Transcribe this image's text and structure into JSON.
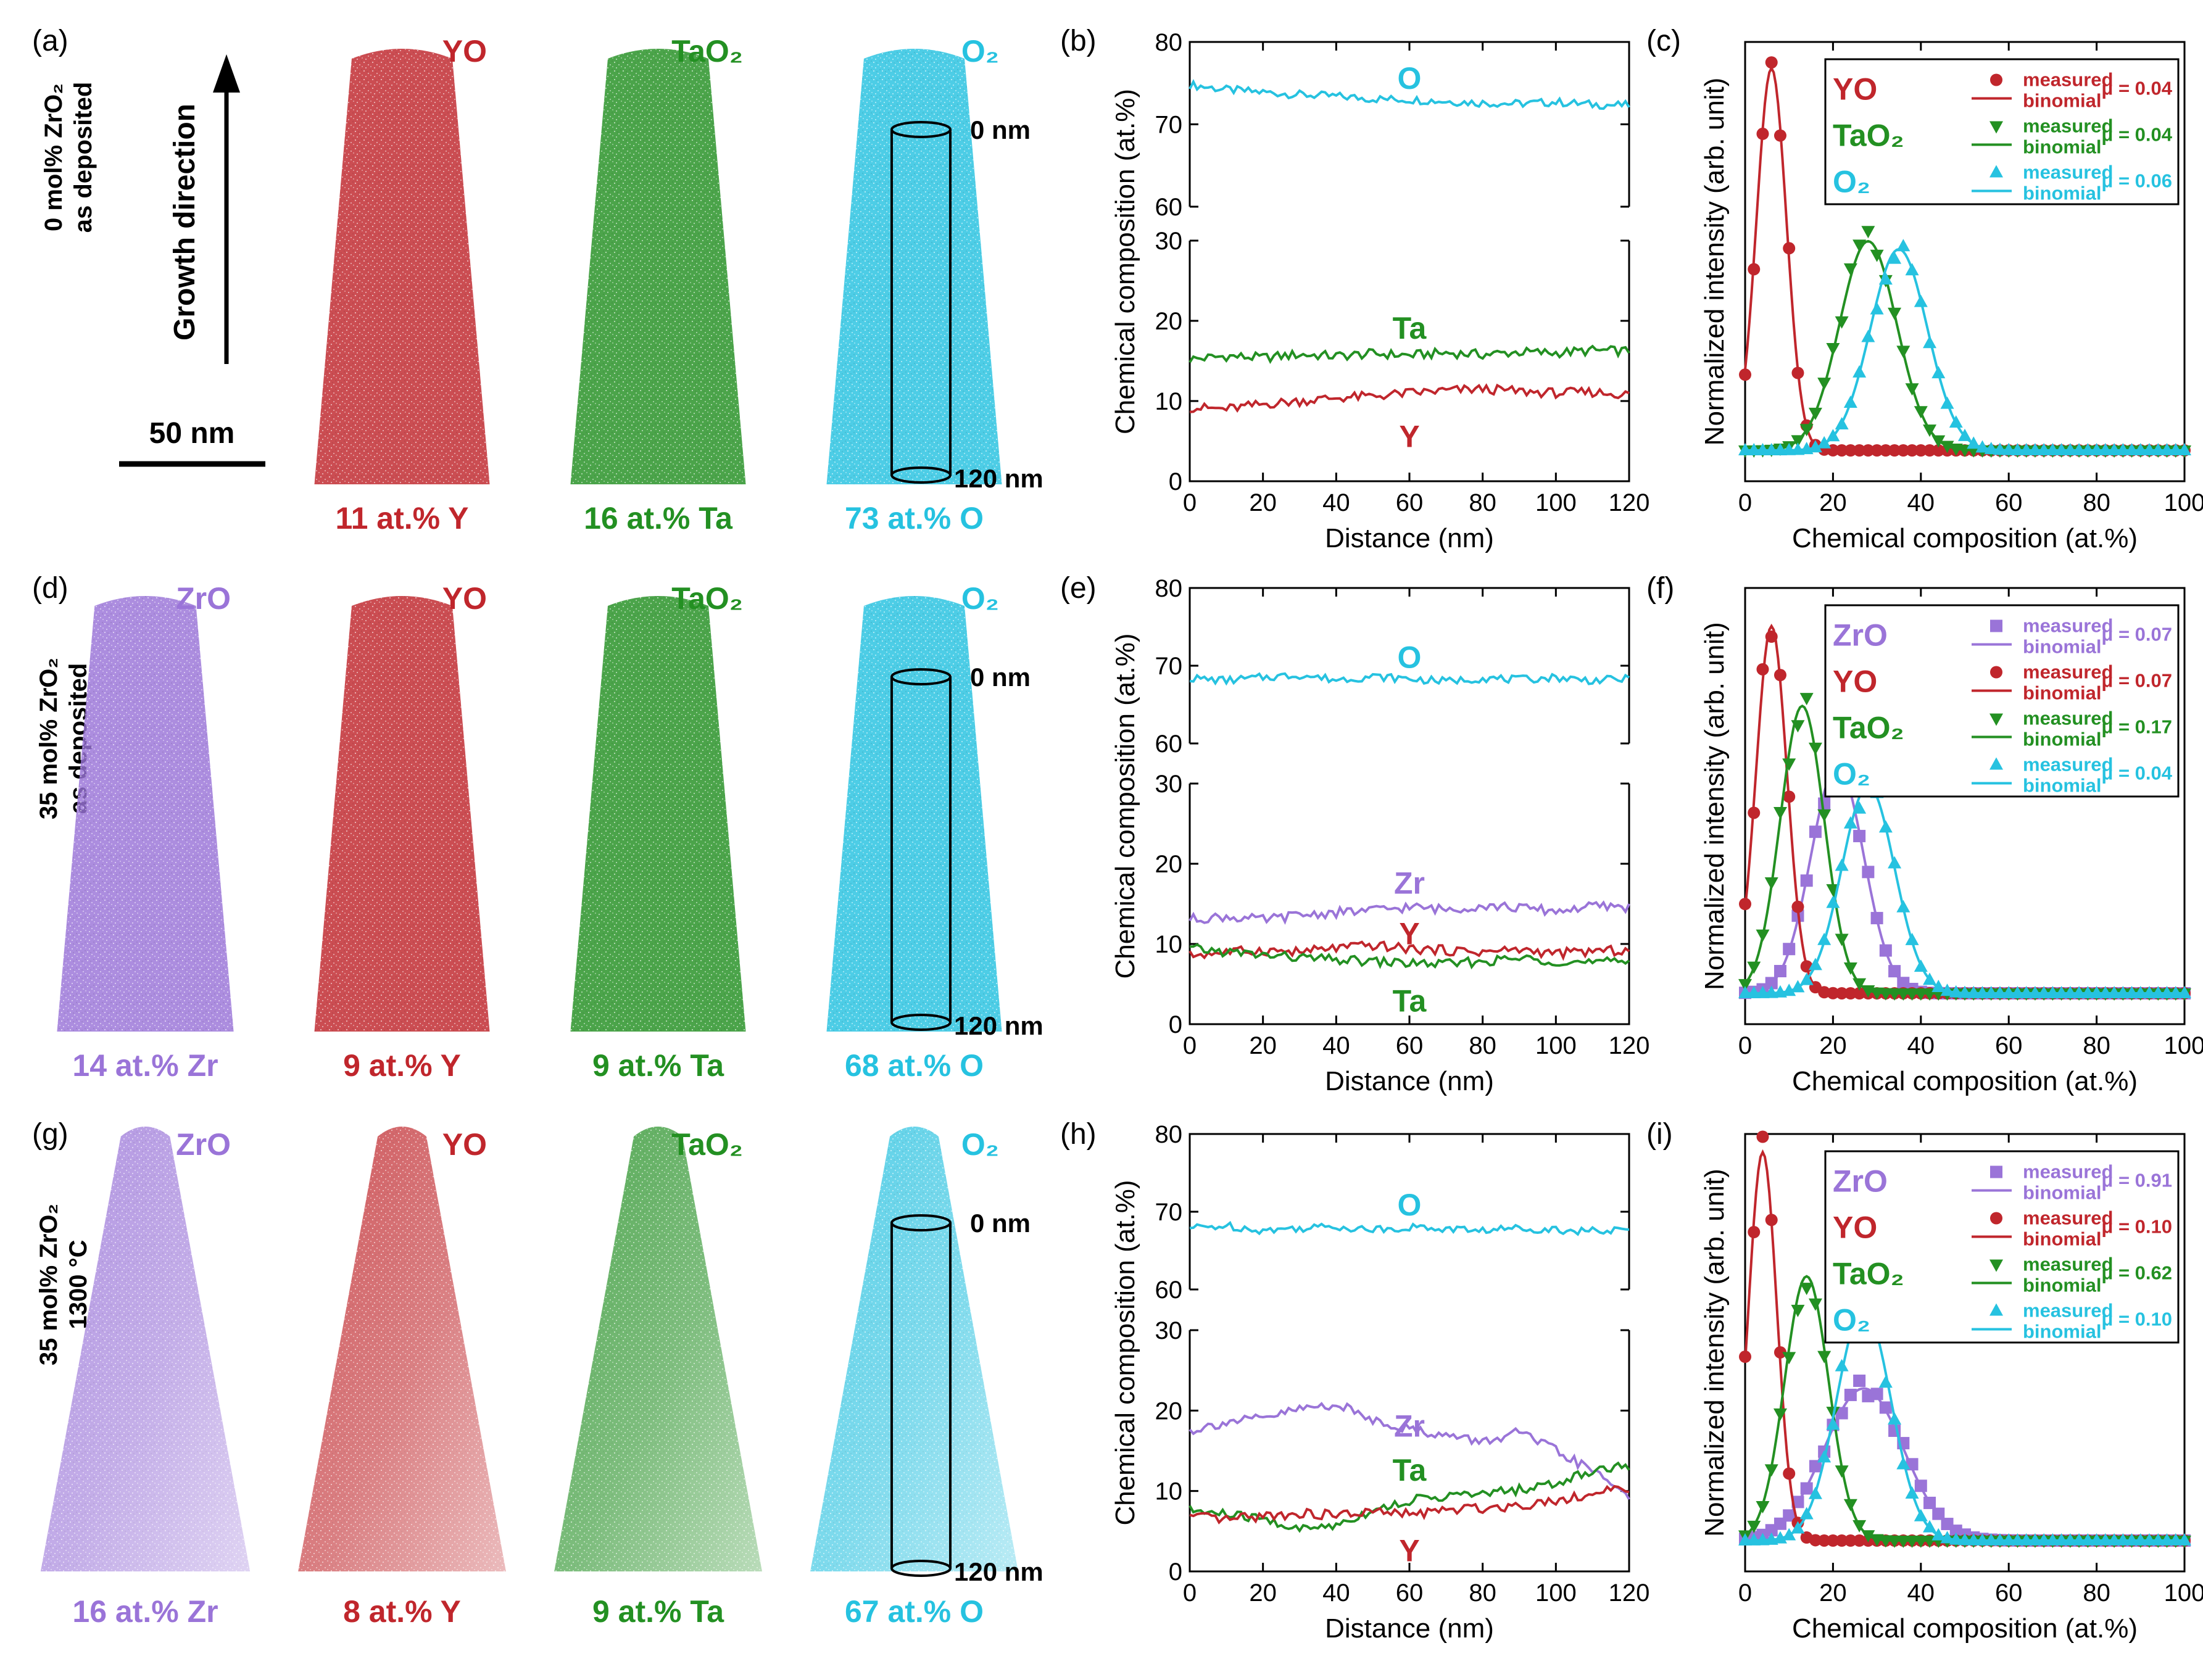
{
  "colors": {
    "Zr": "#9a74d8",
    "Y": "#c0262c",
    "Ta": "#239022",
    "O": "#26c2e0",
    "axis": "#000000"
  },
  "growth_direction": "Growth direction",
  "scale_bar_label": "50 nm",
  "cylinder_top_label": "0 nm",
  "cylinder_bottom_label": "120 nm",
  "profile_xlabel": "Distance (nm)",
  "profile_ylabel": "Chemical composition (at.%)",
  "hist_xlabel": "Chemical composition (at.%)",
  "hist_ylabel": "Normalized intensity (arb. unit)",
  "legend_measured": "measured",
  "legend_binomial": "binomial",
  "rows": [
    {
      "panel_letters": [
        "(a)",
        "(b)",
        "(c)"
      ],
      "row_label": [
        "0 mol% ZrO₂",
        "as deposited"
      ],
      "maps": [
        {
          "species": "YO",
          "element": "Y",
          "caption": "11 at.% Y"
        },
        {
          "species": "TaO₂",
          "element": "Ta",
          "caption": "16 at.% Ta"
        },
        {
          "species": "O₂",
          "element": "O",
          "caption": "73 at.% O"
        }
      ],
      "legend": [
        {
          "species": "YO",
          "element": "Y",
          "marker": "circle",
          "mu": "μ = 0.04"
        },
        {
          "species": "TaO₂",
          "element": "Ta",
          "marker": "triangle-down",
          "mu": "μ = 0.04"
        },
        {
          "species": "O₂",
          "element": "O",
          "marker": "triangle-up",
          "mu": "μ = 0.06"
        }
      ]
    },
    {
      "panel_letters": [
        "(d)",
        "(e)",
        "(f)"
      ],
      "row_label": [
        "35 mol% ZrO₂",
        "as deposited"
      ],
      "maps": [
        {
          "species": "ZrO",
          "element": "Zr",
          "caption": "14 at.% Zr"
        },
        {
          "species": "YO",
          "element": "Y",
          "caption": "9 at.% Y"
        },
        {
          "species": "TaO₂",
          "element": "Ta",
          "caption": "9 at.% Ta"
        },
        {
          "species": "O₂",
          "element": "O",
          "caption": "68 at.% O"
        }
      ],
      "legend": [
        {
          "species": "ZrO",
          "element": "Zr",
          "marker": "square",
          "mu": "μ = 0.07"
        },
        {
          "species": "YO",
          "element": "Y",
          "marker": "circle",
          "mu": "μ = 0.07"
        },
        {
          "species": "TaO₂",
          "element": "Ta",
          "marker": "triangle-down",
          "mu": "μ = 0.17"
        },
        {
          "species": "O₂",
          "element": "O",
          "marker": "triangle-up",
          "mu": "μ = 0.04"
        }
      ]
    },
    {
      "panel_letters": [
        "(g)",
        "(h)",
        "(i)"
      ],
      "row_label": [
        "35 mol% ZrO₂",
        "1300 °C"
      ],
      "maps": [
        {
          "species": "ZrO",
          "element": "Zr",
          "caption": "16 at.% Zr"
        },
        {
          "species": "YO",
          "element": "Y",
          "caption": "8 at.% Y"
        },
        {
          "species": "TaO₂",
          "element": "Ta",
          "caption": "9 at.% Ta"
        },
        {
          "species": "O₂",
          "element": "O",
          "caption": "67 at.% O"
        }
      ],
      "legend": [
        {
          "species": "ZrO",
          "element": "Zr",
          "marker": "square",
          "mu": "μ = 0.91"
        },
        {
          "species": "YO",
          "element": "Y",
          "marker": "circle",
          "mu": "μ = 0.10"
        },
        {
          "species": "TaO₂",
          "element": "Ta",
          "marker": "triangle-down",
          "mu": "μ = 0.62"
        },
        {
          "species": "O₂",
          "element": "O",
          "marker": "triangle-up",
          "mu": "μ = 0.10"
        }
      ]
    }
  ],
  "chart_data": [
    {
      "id": "b",
      "type": "line",
      "xlabel": "Distance (nm)",
      "ylabel": "Chemical composition (at.%)",
      "xlim": [
        0,
        120
      ],
      "ylim_top": [
        60,
        80
      ],
      "ylim_bottom": [
        0,
        30
      ],
      "xticks": [
        0,
        20,
        40,
        60,
        80,
        100,
        120
      ],
      "yticks_top": [
        60,
        70,
        80
      ],
      "yticks_bottom": [
        0,
        10,
        20,
        30
      ],
      "series": [
        {
          "name": "O",
          "element": "O",
          "axis": "top",
          "label_at": [
            60,
            75.5
          ],
          "x": [
            0,
            10,
            20,
            30,
            40,
            50,
            60,
            70,
            80,
            90,
            100,
            110,
            120
          ],
          "values": [
            74.8,
            74.2,
            73.9,
            73.6,
            73.4,
            73.1,
            73.0,
            72.8,
            72.6,
            72.5,
            72.7,
            72.4,
            72.3
          ]
        },
        {
          "name": "Ta",
          "element": "Ta",
          "axis": "bottom",
          "label_at": [
            60,
            19
          ],
          "x": [
            0,
            10,
            20,
            30,
            40,
            50,
            60,
            70,
            80,
            90,
            100,
            110,
            120
          ],
          "values": [
            15.2,
            15.6,
            15.4,
            15.8,
            15.6,
            15.9,
            15.7,
            16.0,
            15.8,
            16.1,
            16.0,
            16.3,
            16.2
          ]
        },
        {
          "name": "Y",
          "element": "Y",
          "axis": "bottom",
          "label_at": [
            60,
            5.5
          ],
          "x": [
            0,
            10,
            20,
            30,
            40,
            50,
            60,
            70,
            80,
            90,
            100,
            110,
            120
          ],
          "values": [
            9.2,
            9.0,
            9.6,
            10.0,
            10.4,
            10.6,
            11.0,
            11.3,
            11.5,
            11.2,
            11.0,
            11.1,
            10.8
          ]
        }
      ]
    },
    {
      "id": "c",
      "type": "line",
      "xlabel": "Chemical composition (at.%)",
      "ylabel": "Normalized intensity (arb. unit)",
      "xlim": [
        0,
        100
      ],
      "ymax": 1.0,
      "xticks": [
        0,
        20,
        40,
        60,
        80,
        100
      ],
      "series": [
        {
          "name": "YO",
          "element": "Y",
          "marker": "circle",
          "mean": 6,
          "sd": 3.4,
          "amp": 0.95
        },
        {
          "name": "TaO₂",
          "element": "Ta",
          "marker": "triangle-down",
          "mean": 28,
          "sd": 6.5,
          "amp": 0.52
        },
        {
          "name": "O₂",
          "element": "O",
          "marker": "triangle-up",
          "mean": 35,
          "sd": 6.5,
          "amp": 0.5
        }
      ]
    },
    {
      "id": "e",
      "type": "line",
      "xlabel": "Distance (nm)",
      "ylabel": "Chemical composition (at.%)",
      "xlim": [
        0,
        120
      ],
      "ylim_top": [
        60,
        80
      ],
      "ylim_bottom": [
        0,
        30
      ],
      "xticks": [
        0,
        20,
        40,
        60,
        80,
        100,
        120
      ],
      "yticks_top": [
        60,
        70,
        80
      ],
      "yticks_bottom": [
        0,
        10,
        20,
        30
      ],
      "series": [
        {
          "name": "O",
          "element": "O",
          "axis": "top",
          "label_at": [
            60,
            71
          ],
          "x": [
            0,
            10,
            20,
            30,
            40,
            50,
            60,
            70,
            80,
            90,
            100,
            110,
            120
          ],
          "values": [
            68.4,
            68.1,
            68.5,
            68.8,
            68.2,
            68.6,
            68.3,
            68.0,
            68.4,
            68.2,
            68.5,
            68.1,
            68.3
          ]
        },
        {
          "name": "Zr",
          "element": "Zr",
          "axis": "bottom",
          "label_at": [
            60,
            17.5
          ],
          "x": [
            0,
            10,
            20,
            30,
            40,
            50,
            60,
            70,
            80,
            90,
            100,
            110,
            120
          ],
          "values": [
            13.1,
            13.4,
            13.0,
            13.6,
            13.9,
            14.2,
            14.6,
            14.3,
            14.8,
            14.5,
            14.1,
            14.7,
            14.6
          ]
        },
        {
          "name": "Y",
          "element": "Y",
          "axis": "bottom",
          "label_at": [
            60,
            11.2
          ],
          "x": [
            0,
            10,
            20,
            30,
            40,
            50,
            60,
            70,
            80,
            90,
            100,
            110,
            120
          ],
          "values": [
            8.6,
            9.0,
            9.2,
            9.0,
            9.5,
            9.8,
            9.4,
            9.2,
            9.0,
            9.3,
            8.8,
            9.1,
            9.2
          ]
        },
        {
          "name": "Ta",
          "element": "Ta",
          "axis": "bottom",
          "label_at": [
            60,
            2.8
          ],
          "x": [
            0,
            10,
            20,
            30,
            40,
            50,
            60,
            70,
            80,
            90,
            100,
            110,
            120
          ],
          "values": [
            9.4,
            9.0,
            8.6,
            8.3,
            8.0,
            7.8,
            7.6,
            7.5,
            7.8,
            8.2,
            7.9,
            7.6,
            7.9
          ]
        }
      ]
    },
    {
      "id": "f",
      "type": "line",
      "xlabel": "Chemical composition (at.%)",
      "ylabel": "Normalized intensity (arb. unit)",
      "xlim": [
        0,
        100
      ],
      "ymax": 1.0,
      "xticks": [
        0,
        20,
        40,
        60,
        80,
        100
      ],
      "series": [
        {
          "name": "ZrO",
          "element": "Zr",
          "marker": "square",
          "mean": 21,
          "sd": 6.0,
          "amp": 0.57
        },
        {
          "name": "YO",
          "element": "Y",
          "marker": "circle",
          "mean": 6,
          "sd": 3.5,
          "amp": 0.92
        },
        {
          "name": "TaO₂",
          "element": "Ta",
          "marker": "triangle-down",
          "mean": 13,
          "sd": 5.0,
          "amp": 0.72
        },
        {
          "name": "O₂",
          "element": "O",
          "marker": "triangle-up",
          "mean": 28,
          "sd": 6.0,
          "amp": 0.52
        }
      ]
    },
    {
      "id": "h",
      "type": "line",
      "xlabel": "Distance (nm)",
      "ylabel": "Chemical composition (at.%)",
      "xlim": [
        0,
        120
      ],
      "ylim_top": [
        60,
        80
      ],
      "ylim_bottom": [
        0,
        30
      ],
      "xticks": [
        0,
        20,
        40,
        60,
        80,
        100,
        120
      ],
      "yticks_top": [
        60,
        70,
        80
      ],
      "yticks_bottom": [
        0,
        10,
        20,
        30
      ],
      "series": [
        {
          "name": "O",
          "element": "O",
          "axis": "top",
          "label_at": [
            60,
            70.8
          ],
          "x": [
            0,
            10,
            20,
            30,
            40,
            50,
            60,
            70,
            80,
            90,
            100,
            110,
            120
          ],
          "values": [
            67.9,
            68.2,
            67.6,
            67.9,
            68.1,
            67.7,
            68.0,
            67.8,
            67.6,
            67.9,
            67.7,
            67.5,
            67.6
          ]
        },
        {
          "name": "Zr",
          "element": "Zr",
          "axis": "bottom",
          "label_at": [
            60,
            18
          ],
          "x": [
            0,
            10,
            20,
            30,
            40,
            50,
            60,
            70,
            80,
            90,
            100,
            110,
            120
          ],
          "values": [
            17.5,
            18.6,
            19.0,
            20.2,
            20.8,
            18.9,
            17.7,
            16.9,
            16.1,
            17.3,
            15.0,
            12.5,
            9.5
          ]
        },
        {
          "name": "Ta",
          "element": "Ta",
          "axis": "bottom",
          "label_at": [
            60,
            12.5
          ],
          "x": [
            0,
            10,
            20,
            30,
            40,
            50,
            60,
            70,
            80,
            90,
            100,
            110,
            120
          ],
          "values": [
            7.6,
            7.1,
            6.5,
            5.2,
            5.8,
            7.6,
            8.8,
            9.4,
            9.6,
            10.2,
            10.9,
            12.6,
            13.2
          ]
        },
        {
          "name": "Y",
          "element": "Y",
          "axis": "bottom",
          "label_at": [
            60,
            2.5
          ],
          "x": [
            0,
            10,
            20,
            30,
            40,
            50,
            60,
            70,
            80,
            90,
            100,
            110,
            120
          ],
          "values": [
            6.8,
            6.4,
            6.9,
            7.2,
            7.0,
            7.4,
            7.1,
            7.6,
            7.9,
            8.2,
            8.9,
            9.6,
            10.4
          ]
        }
      ]
    },
    {
      "id": "i",
      "type": "line",
      "xlabel": "Chemical composition (at.%)",
      "ylabel": "Normalized intensity (arb. unit)",
      "xlim": [
        0,
        100
      ],
      "ymax": 1.0,
      "xticks": [
        0,
        20,
        40,
        60,
        80,
        100
      ],
      "series": [
        {
          "name": "ZrO",
          "element": "Zr",
          "marker": "square",
          "mean": 27,
          "sd": 9.0,
          "amp": 0.38
        },
        {
          "name": "YO",
          "element": "Y",
          "marker": "circle",
          "mean": 4,
          "sd": 3.2,
          "amp": 0.97
        },
        {
          "name": "TaO₂",
          "element": "Ta",
          "marker": "triangle-down",
          "mean": 14,
          "sd": 5.0,
          "amp": 0.66
        },
        {
          "name": "O₂",
          "element": "O",
          "marker": "triangle-up",
          "mean": 27,
          "sd": 6.2,
          "amp": 0.58
        }
      ]
    }
  ]
}
